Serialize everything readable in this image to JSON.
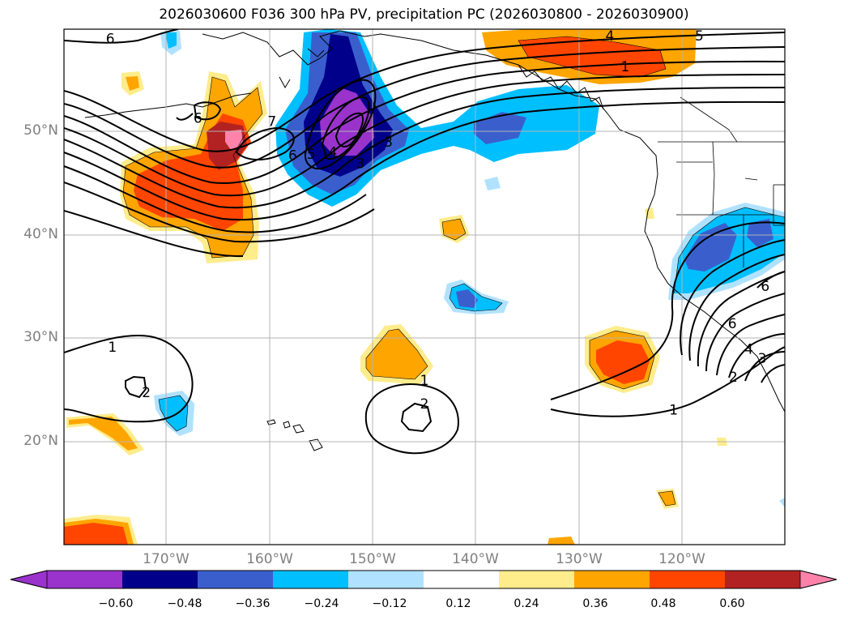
{
  "title": "2026030600 F036 300 hPa PV, precipitation PC (2026030800 - 2026030900)",
  "lat_labels": [
    "50°N",
    "40°N",
    "30°N",
    "20°N"
  ],
  "lon_labels": [
    "170°W",
    "160°W",
    "150°W",
    "140°W",
    "130°W",
    "120°W"
  ],
  "colorbar": {
    "ticks": [
      "−0.60",
      "−0.48",
      "−0.36",
      "−0.24",
      "−0.12",
      "0.12",
      "0.24",
      "0.36",
      "0.48",
      "0.60"
    ],
    "colors": [
      "#9933cc",
      "#00008b",
      "#3a5fcd",
      "#00bfff",
      "#b0e2ff",
      "#ffffff",
      "#ffec8b",
      "#ffa500",
      "#ff4500",
      "#b22222",
      "#ff82ab"
    ]
  },
  "contour_labels": [
    {
      "text": "6",
      "lon": -175.5,
      "lat": 59.0
    },
    {
      "text": "6",
      "lon": -167.0,
      "lat": 51.3
    },
    {
      "text": "7",
      "lon": -159.8,
      "lat": 51.0
    },
    {
      "text": "6",
      "lon": -157.8,
      "lat": 47.7
    },
    {
      "text": "5",
      "lon": -156.0,
      "lat": 47.8
    },
    {
      "text": "4",
      "lon": -153.9,
      "lat": 48.0
    },
    {
      "text": "3",
      "lon": -151.2,
      "lat": 46.9
    },
    {
      "text": "3",
      "lon": -148.5,
      "lat": 49.0
    },
    {
      "text": "4",
      "lon": -127.0,
      "lat": 59.3
    },
    {
      "text": "5",
      "lon": -118.3,
      "lat": 59.3
    },
    {
      "text": "1",
      "lon": -125.5,
      "lat": 56.3
    },
    {
      "text": "1",
      "lon": -175.3,
      "lat": 29.1
    },
    {
      "text": "2",
      "lon": -172.0,
      "lat": 24.7
    },
    {
      "text": "1",
      "lon": -145.0,
      "lat": 25.9
    },
    {
      "text": "2",
      "lon": -145.0,
      "lat": 23.6
    },
    {
      "text": "1",
      "lon": -120.8,
      "lat": 23.0
    },
    {
      "text": "6",
      "lon": -111.9,
      "lat": 35.0
    },
    {
      "text": "6",
      "lon": -115.1,
      "lat": 31.4
    },
    {
      "text": "4",
      "lon": -113.5,
      "lat": 28.9
    },
    {
      "text": "3",
      "lon": -112.2,
      "lat": 28.0
    },
    {
      "text": "2",
      "lon": -115.0,
      "lat": 26.2
    }
  ]
}
